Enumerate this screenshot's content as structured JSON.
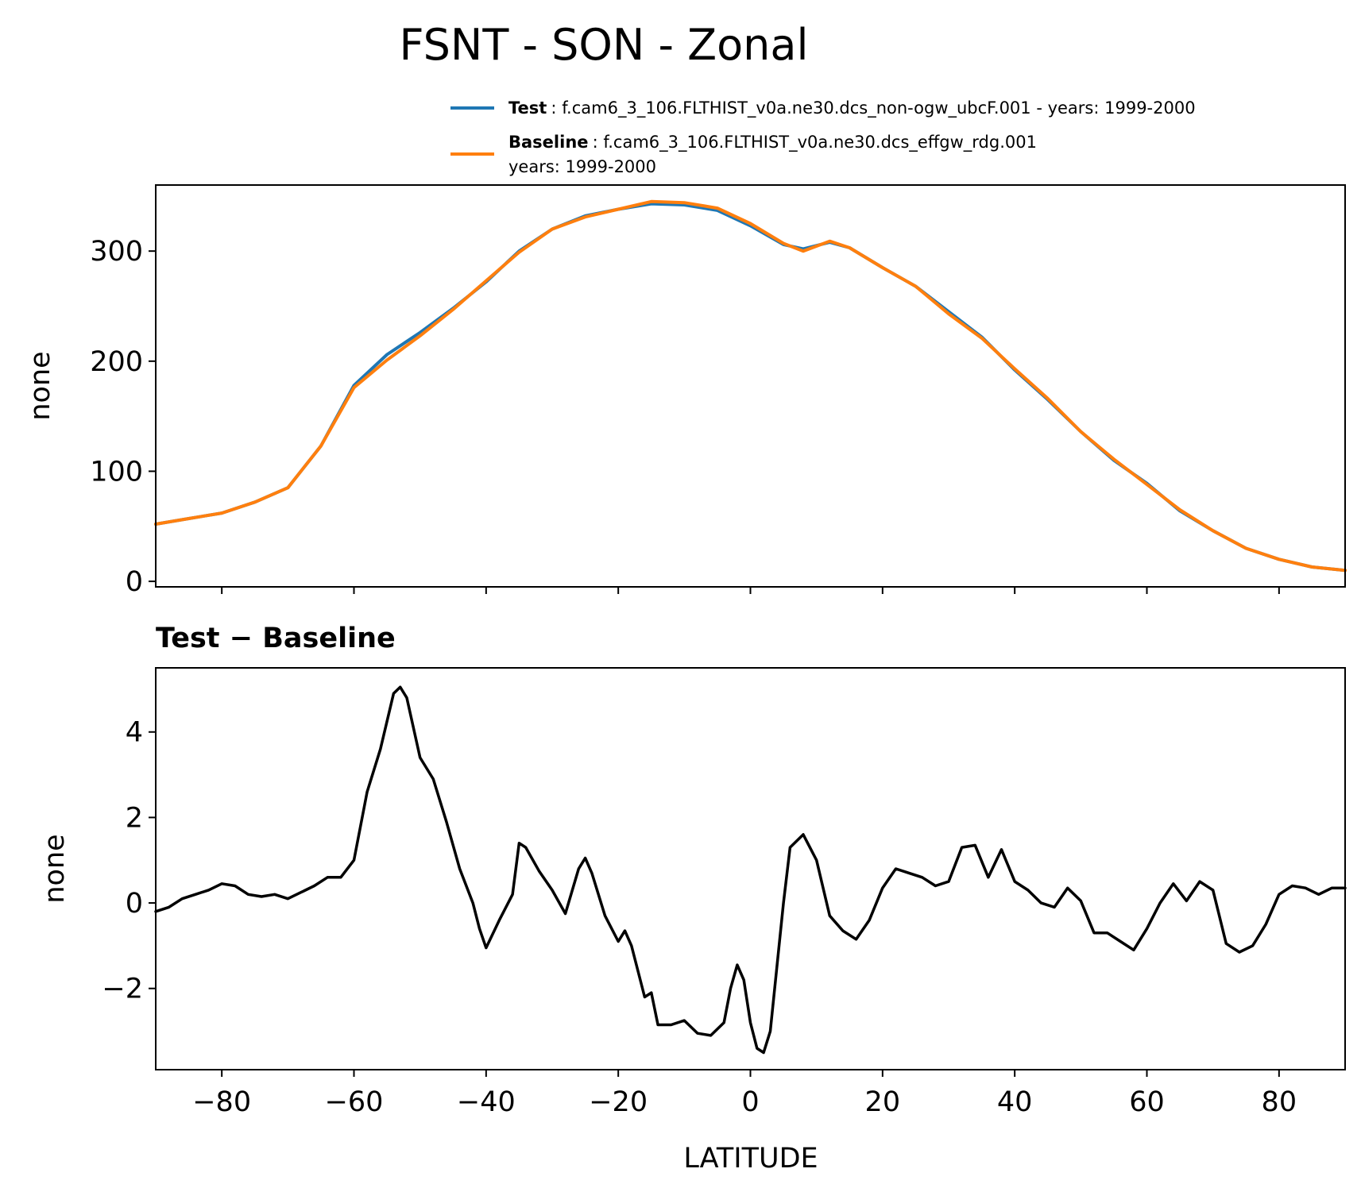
{
  "chart_data": [
    {
      "type": "line",
      "title": "FSNT - SON - Zonal",
      "ylabel": "none",
      "xlim": [
        -90,
        90
      ],
      "ylim": [
        -5,
        360
      ],
      "yticks": [
        0,
        100,
        200,
        300
      ],
      "xticks": [
        -80,
        -60,
        -40,
        -20,
        0,
        20,
        40,
        60,
        80
      ],
      "grid": false,
      "legend": {
        "placement": "above-top-right",
        "entries": [
          {
            "key": "Test",
            "text": "f.cam6_3_106.FLTHIST_v0a.ne30.dcs_non-ogw_ubcF.001 - years: 1999-2000"
          },
          {
            "key": "Baseline",
            "text": "f.cam6_3_106.FLTHIST_v0a.ne30.dcs_effgw_rdg.001",
            "text2": "years: 1999-2000"
          }
        ]
      },
      "x": [
        -90,
        -85,
        -80,
        -75,
        -70,
        -65,
        -60,
        -55,
        -50,
        -45,
        -40,
        -35,
        -30,
        -25,
        -20,
        -15,
        -10,
        -5,
        0,
        5,
        8,
        12,
        15,
        20,
        25,
        30,
        35,
        40,
        45,
        50,
        55,
        60,
        65,
        70,
        75,
        80,
        85,
        90
      ],
      "series": [
        {
          "name": "Test",
          "color": "#1f77b4",
          "values": [
            52,
            57,
            62,
            72,
            85,
            123,
            178,
            206,
            226,
            248,
            272,
            300,
            320,
            332,
            338,
            343,
            342,
            337,
            323,
            306,
            302,
            308,
            303,
            285,
            268,
            245,
            222,
            192,
            165,
            136,
            110,
            89,
            64,
            46,
            30,
            20,
            13,
            10
          ]
        },
        {
          "name": "Baseline",
          "color": "#ff7f0e",
          "values": [
            52,
            57,
            62,
            72,
            85,
            123,
            176,
            201,
            223,
            247,
            273,
            299,
            320,
            331,
            338,
            345,
            344,
            339,
            325,
            307,
            300,
            309,
            303,
            285,
            268,
            243,
            221,
            193,
            166,
            136,
            111,
            88,
            65,
            46,
            30,
            20,
            13,
            10
          ]
        }
      ]
    },
    {
      "type": "line",
      "title": "Test − Baseline",
      "ylabel": "none",
      "xlabel": "LATITUDE",
      "xlim": [
        -90,
        90
      ],
      "ylim": [
        -3.9,
        5.5
      ],
      "yticks": [
        -2,
        0,
        2,
        4
      ],
      "xticks": [
        -80,
        -60,
        -40,
        -20,
        0,
        20,
        40,
        60,
        80
      ],
      "ytick_labels": [
        "−2",
        "0",
        "2",
        "4"
      ],
      "xtick_labels": [
        "−80",
        "−60",
        "−40",
        "−20",
        "0",
        "20",
        "40",
        "60",
        "80"
      ],
      "grid": false,
      "series": [
        {
          "color": "#000000",
          "x": [
            -90,
            -88,
            -86,
            -84,
            -82,
            -80,
            -78,
            -76,
            -74,
            -72,
            -70,
            -68,
            -66,
            -64,
            -62,
            -60,
            -58,
            -56,
            -54,
            -53,
            -52,
            -50,
            -48,
            -46,
            -44,
            -42,
            -41,
            -40,
            -38,
            -36,
            -35,
            -34,
            -32,
            -30,
            -28,
            -26,
            -25,
            -24,
            -22,
            -20,
            -19,
            -18,
            -16,
            -15,
            -14,
            -12,
            -10,
            -8,
            -6,
            -4,
            -3,
            -2,
            -1,
            0,
            1,
            2,
            3,
            4,
            5,
            6,
            8,
            10,
            12,
            14,
            16,
            18,
            20,
            22,
            24,
            26,
            28,
            30,
            32,
            34,
            36,
            38,
            40,
            42,
            44,
            46,
            48,
            50,
            52,
            54,
            56,
            58,
            60,
            62,
            64,
            66,
            68,
            70,
            72,
            74,
            76,
            78,
            80,
            82,
            84,
            86,
            88,
            90
          ],
          "values": [
            -0.2,
            -0.1,
            0.1,
            0.2,
            0.3,
            0.45,
            0.4,
            0.2,
            0.15,
            0.2,
            0.1,
            0.25,
            0.4,
            0.6,
            0.6,
            1.0,
            2.6,
            3.6,
            4.9,
            5.05,
            4.8,
            3.4,
            2.9,
            1.9,
            0.8,
            0.0,
            -0.6,
            -1.05,
            -0.4,
            0.2,
            1.4,
            1.3,
            0.75,
            0.3,
            -0.25,
            0.8,
            1.05,
            0.7,
            -0.3,
            -0.9,
            -0.65,
            -1.0,
            -2.2,
            -2.1,
            -2.85,
            -2.85,
            -2.75,
            -3.05,
            -3.1,
            -2.8,
            -2.0,
            -1.45,
            -1.8,
            -2.8,
            -3.4,
            -3.5,
            -3.0,
            -1.5,
            0.0,
            1.3,
            1.6,
            1.0,
            -0.3,
            -0.65,
            -0.85,
            -0.4,
            0.35,
            0.8,
            0.7,
            0.6,
            0.4,
            0.5,
            1.3,
            1.35,
            0.6,
            1.25,
            0.5,
            0.3,
            0.0,
            -0.1,
            0.35,
            0.05,
            -0.7,
            -0.7,
            -0.9,
            -1.1,
            -0.6,
            0.0,
            0.45,
            0.05,
            0.5,
            0.3,
            -0.95,
            -1.15,
            -1.0,
            -0.5,
            0.2,
            0.4,
            0.35,
            0.2,
            0.35,
            0.35
          ]
        }
      ]
    }
  ]
}
